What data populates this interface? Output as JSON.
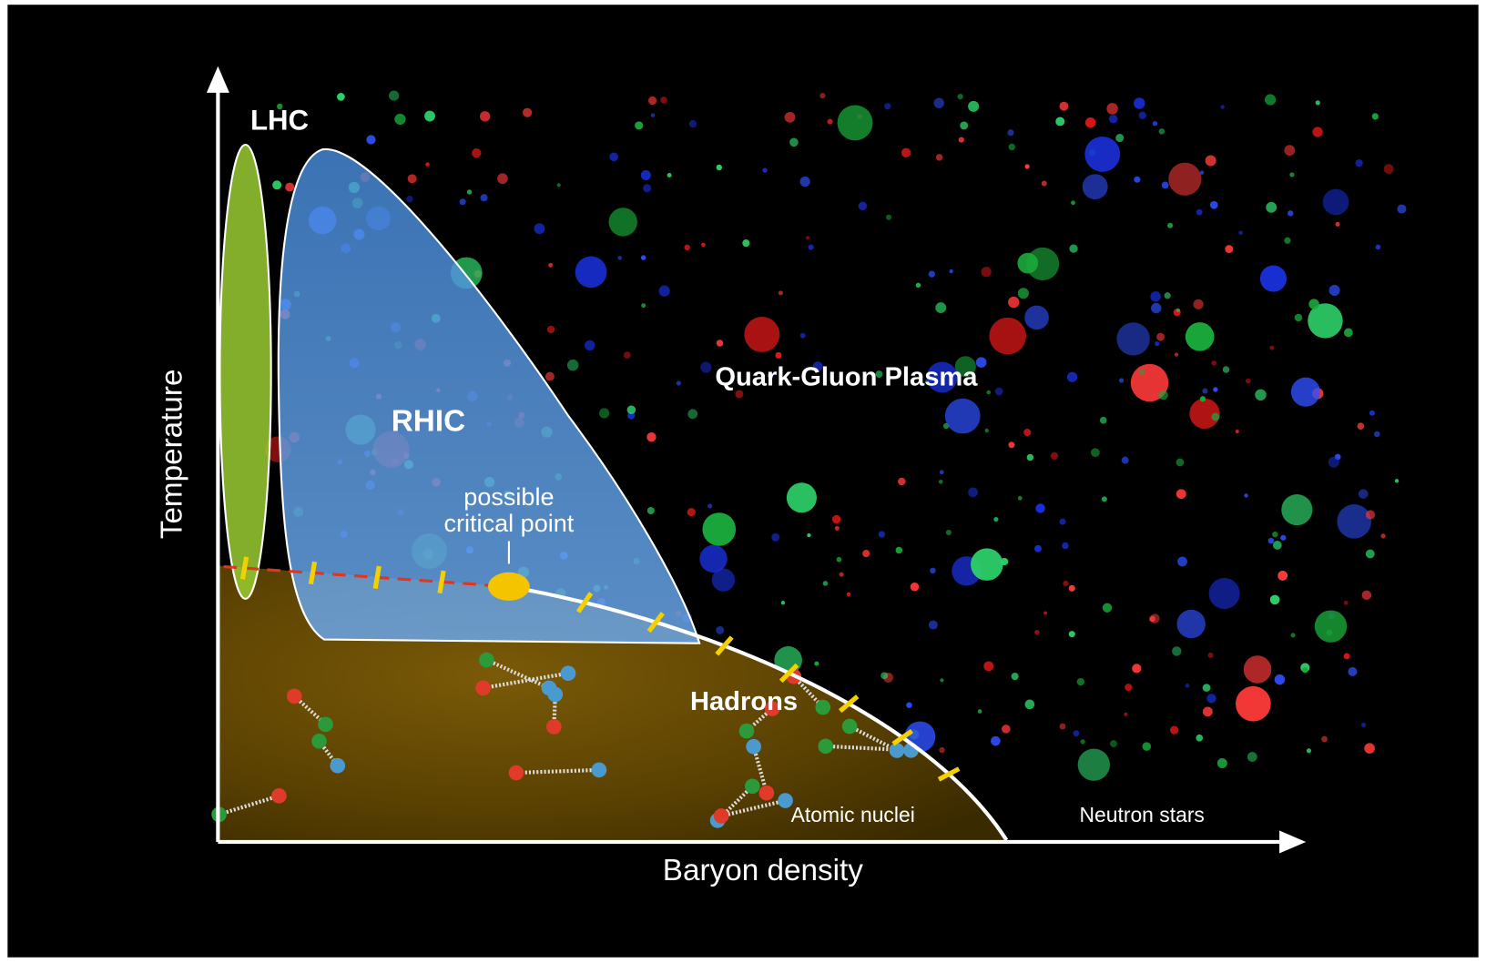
{
  "axes": {
    "y_label": "Temperature",
    "x_label": "Baryon density"
  },
  "regions": {
    "lhc": "LHC",
    "rhic": "RHIC",
    "qgp": "Quark-Gluon Plasma",
    "hadrons": "Hadrons",
    "atomic_nuclei": "Atomic nuclei",
    "neutron_stars": "Neutron stars"
  },
  "critical_point": {
    "label_lines": [
      "possible",
      "critical point"
    ]
  }
}
